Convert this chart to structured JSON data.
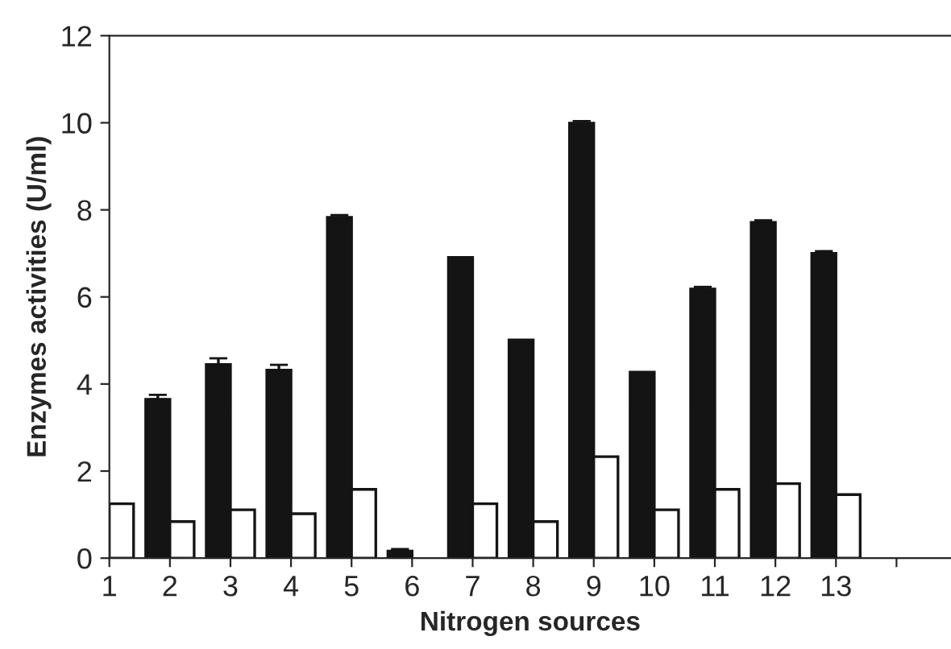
{
  "chart_data": {
    "type": "bar",
    "xlabel": "Nitrogen sources",
    "ylabel": "Enzymes activities (U/ml)",
    "x": [
      1,
      2,
      3,
      4,
      5,
      6,
      7,
      8,
      9,
      10,
      11,
      12,
      13
    ],
    "series": [
      {
        "color": "#141414",
        "values": [
          null,
          3.65,
          4.45,
          4.32,
          7.83,
          0.16,
          6.91,
          5.01,
          9.99,
          4.27,
          6.18,
          7.71,
          7.0
        ],
        "errors": [
          null,
          0.1,
          0.14,
          0.12,
          0.05,
          0.05,
          null,
          null,
          0.05,
          null,
          0.05,
          0.05,
          0.05
        ]
      },
      {
        "color": "#ffffff",
        "values": [
          1.25,
          0.84,
          1.11,
          1.02,
          1.58,
          null,
          1.25,
          0.84,
          2.33,
          1.11,
          1.58,
          1.71,
          1.46
        ]
      }
    ],
    "xlim": [
      1,
      14.9
    ],
    "xticks": [
      1,
      2,
      3,
      4,
      5,
      6,
      7,
      8,
      9,
      10,
      11,
      12,
      13,
      {
        "value": 14,
        "label": null
      }
    ],
    "ylim": [
      0,
      12
    ],
    "yticks": [
      0,
      2,
      4,
      6,
      8,
      10,
      12
    ],
    "grid": false,
    "legend": false
  }
}
